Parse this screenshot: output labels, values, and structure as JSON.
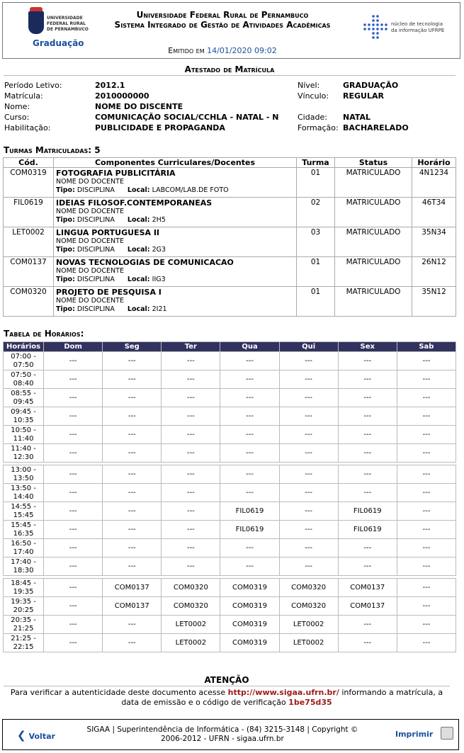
{
  "header": {
    "logo_text": "UNIVERSIDADE FEDERAL RURAL DE PERNAMBUCO",
    "module": "Graduação",
    "line1": "Universidade Federal Rural de Pernambuco",
    "line2": "Sistema Integrado de Gestão de Atividades Acadêmicas",
    "emitted_label": "Emitido em",
    "emitted_value": "14/01/2020 09:02",
    "nti_text": "núcleo de tecnologia da informação UFRPE"
  },
  "title": "Atestado de Matrícula",
  "info_left": [
    {
      "label": "Período Letivo:",
      "value": "2012.1"
    },
    {
      "label": "Matrícula:",
      "value": "2010000000"
    },
    {
      "label": "Nome:",
      "value": "NOME DO DISCENTE"
    },
    {
      "label": "Curso:",
      "value": "COMUNICAÇÃO SOCIAL/CCHLA - NATAL - N"
    },
    {
      "label": "Habilitação:",
      "value": "PUBLICIDADE E PROPAGANDA"
    }
  ],
  "info_right": [
    {
      "label": "Nível:",
      "value": "GRADUAÇÃO"
    },
    {
      "label": "Vínculo:",
      "value": "REGULAR"
    },
    {
      "label": "",
      "value": ""
    },
    {
      "label": "Cidade:",
      "value": "NATAL"
    },
    {
      "label": "Formação:",
      "value": "BACHARELADO"
    }
  ],
  "courses_title": "Turmas Matriculadas: 5",
  "courses_headers": [
    "Cód.",
    "Componentes Curriculares/Docentes",
    "Turma",
    "Status",
    "Horário"
  ],
  "tipo_label": "Tipo:",
  "local_label": "Local:",
  "courses": [
    {
      "code": "COM0319",
      "name": "FOTOGRAFIA PUBLICITÁRIA",
      "teacher": "NOME DO DOCENTE",
      "tipo": "DISCIPLINA",
      "local": "LABCOM/LAB.DE FOTO",
      "turma": "01",
      "status": "MATRICULADO",
      "horario": "4N1234"
    },
    {
      "code": "FIL0619",
      "name": "IDEIAS FILOSOF.CONTEMPORANEAS",
      "teacher": "NOME DO DOCENTE",
      "tipo": "DISCIPLINA",
      "local": "2H5",
      "turma": "02",
      "status": "MATRICULADO",
      "horario": "46T34"
    },
    {
      "code": "LET0002",
      "name": "LINGUA PORTUGUESA II",
      "teacher": "NOME DO DOCENTE",
      "tipo": "DISCIPLINA",
      "local": "2G3",
      "turma": "03",
      "status": "MATRICULADO",
      "horario": "35N34"
    },
    {
      "code": "COM0137",
      "name": "NOVAS TECNOLOGIAS DE COMUNICACAO",
      "teacher": "NOME DO DOCENTE",
      "tipo": "DISCIPLINA",
      "local": "IIG3",
      "turma": "01",
      "status": "MATRICULADO",
      "horario": "26N12"
    },
    {
      "code": "COM0320",
      "name": "PROJETO DE PESQUISA I",
      "teacher": "NOME DO DOCENTE",
      "tipo": "DISCIPLINA",
      "local": "2I21",
      "turma": "01",
      "status": "MATRICULADO",
      "horario": "35N12"
    }
  ],
  "schedule_title": "Tabela de Horários:",
  "schedule_headers": [
    "Horários",
    "Dom",
    "Seg",
    "Ter",
    "Qua",
    "Qui",
    "Sex",
    "Sab"
  ],
  "schedule_groups": [
    [
      {
        "time": "07:00 - 07:50",
        "cells": [
          "---",
          "---",
          "---",
          "---",
          "---",
          "---",
          "---"
        ]
      },
      {
        "time": "07:50 - 08:40",
        "cells": [
          "---",
          "---",
          "---",
          "---",
          "---",
          "---",
          "---"
        ]
      },
      {
        "time": "08:55 - 09:45",
        "cells": [
          "---",
          "---",
          "---",
          "---",
          "---",
          "---",
          "---"
        ]
      },
      {
        "time": "09:45 - 10:35",
        "cells": [
          "---",
          "---",
          "---",
          "---",
          "---",
          "---",
          "---"
        ]
      },
      {
        "time": "10:50 - 11:40",
        "cells": [
          "---",
          "---",
          "---",
          "---",
          "---",
          "---",
          "---"
        ]
      },
      {
        "time": "11:40 - 12:30",
        "cells": [
          "---",
          "---",
          "---",
          "---",
          "---",
          "---",
          "---"
        ]
      }
    ],
    [
      {
        "time": "13:00 - 13:50",
        "cells": [
          "---",
          "---",
          "---",
          "---",
          "---",
          "---",
          "---"
        ]
      },
      {
        "time": "13:50 - 14:40",
        "cells": [
          "---",
          "---",
          "---",
          "---",
          "---",
          "---",
          "---"
        ]
      },
      {
        "time": "14:55 - 15:45",
        "cells": [
          "---",
          "---",
          "---",
          "FIL0619",
          "---",
          "FIL0619",
          "---"
        ]
      },
      {
        "time": "15:45 - 16:35",
        "cells": [
          "---",
          "---",
          "---",
          "FIL0619",
          "---",
          "FIL0619",
          "---"
        ]
      },
      {
        "time": "16:50 - 17:40",
        "cells": [
          "---",
          "---",
          "---",
          "---",
          "---",
          "---",
          "---"
        ]
      },
      {
        "time": "17:40 - 18:30",
        "cells": [
          "---",
          "---",
          "---",
          "---",
          "---",
          "---",
          "---"
        ]
      }
    ],
    [
      {
        "time": "18:45 - 19:35",
        "cells": [
          "---",
          "COM0137",
          "COM0320",
          "COM0319",
          "COM0320",
          "COM0137",
          "---"
        ]
      },
      {
        "time": "19:35 - 20:25",
        "cells": [
          "---",
          "COM0137",
          "COM0320",
          "COM0319",
          "COM0320",
          "COM0137",
          "---"
        ]
      },
      {
        "time": "20:35 - 21:25",
        "cells": [
          "---",
          "---",
          "LET0002",
          "COM0319",
          "LET0002",
          "---",
          "---"
        ]
      },
      {
        "time": "21:25 - 22:15",
        "cells": [
          "---",
          "---",
          "LET0002",
          "COM0319",
          "LET0002",
          "---",
          "---"
        ]
      }
    ]
  ],
  "attention": {
    "title": "ATENÇÃO",
    "text1": "Para verificar a autenticidade deste documento acesse",
    "url": "http://www.sigaa.ufrn.br/",
    "text2": "informando a matrícula, a data de emissão e o código de verificação",
    "code": "1be75d35"
  },
  "footer": {
    "back": "Voltar",
    "line1": "SIGAA | Superintendência de Informática - (84) 3215-3148 | Copyright ©",
    "line2": "2006-2012 - UFRN - sigaa.ufrn.br",
    "print": "Imprimir"
  },
  "colors": {
    "table_header": "#32325f",
    "link": "#1a4f9c",
    "highlight": "#9a1b1b"
  }
}
